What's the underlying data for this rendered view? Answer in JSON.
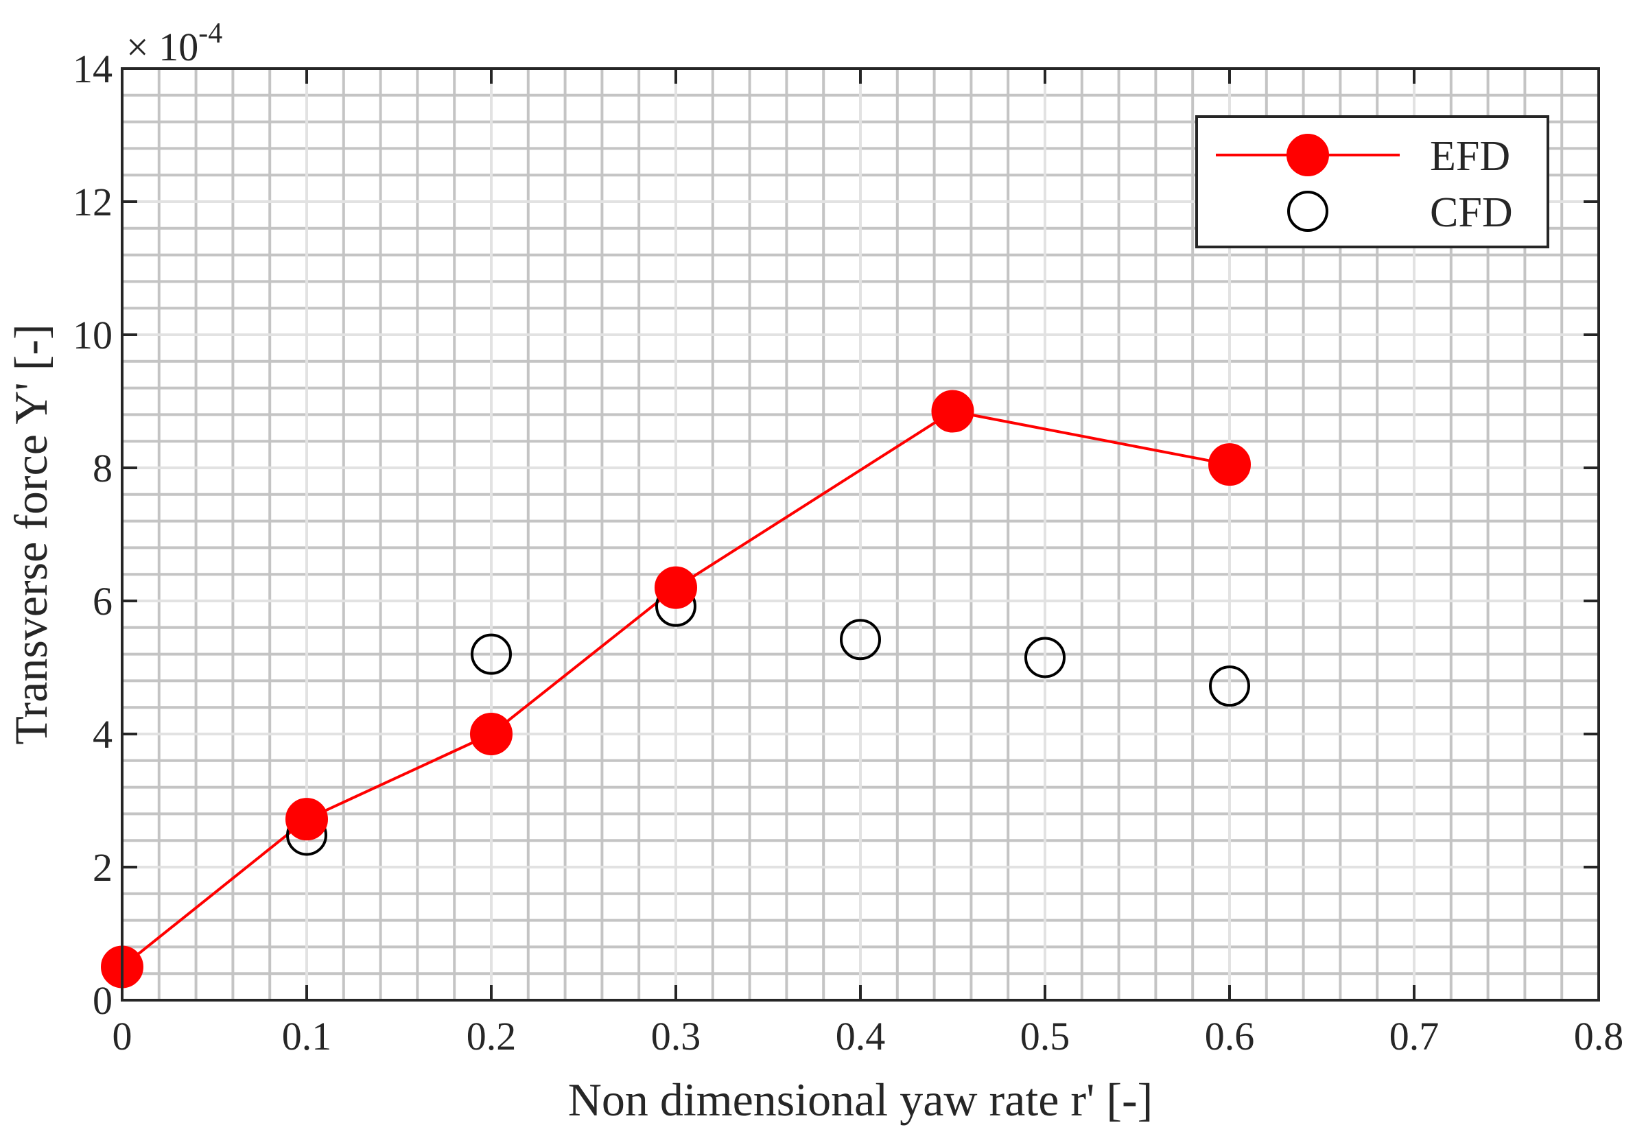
{
  "chart_data": {
    "type": "scatter",
    "title": "",
    "xlabel": "Non dimensional yaw rate r' [-]",
    "ylabel": "Transverse force Y' [-]",
    "y_exponent_label": "× 10",
    "y_exponent_power": "-4",
    "xlim": [
      0,
      0.8
    ],
    "ylim": [
      0,
      14
    ],
    "y_scale_factor": 0.0001,
    "x_ticks": [
      "0",
      "0.1",
      "0.2",
      "0.3",
      "0.4",
      "0.5",
      "0.6",
      "0.7",
      "0.8"
    ],
    "y_ticks": [
      "0",
      "2",
      "4",
      "6",
      "8",
      "10",
      "12",
      "14"
    ],
    "grid": "major and minor",
    "legend_position": "top-right",
    "series": [
      {
        "name": "EFD",
        "style": "line with filled circle markers",
        "color": "#ff0000",
        "x": [
          0,
          0.1,
          0.2,
          0.3,
          0.45,
          0.6
        ],
        "y": [
          0.5,
          2.72,
          4.0,
          6.2,
          8.85,
          8.05
        ]
      },
      {
        "name": "CFD",
        "style": "open circle markers",
        "color": "#000000",
        "x": [
          0.1,
          0.2,
          0.3,
          0.4,
          0.5,
          0.6
        ],
        "y": [
          2.48,
          5.2,
          5.92,
          5.42,
          5.15,
          4.72
        ]
      }
    ]
  }
}
